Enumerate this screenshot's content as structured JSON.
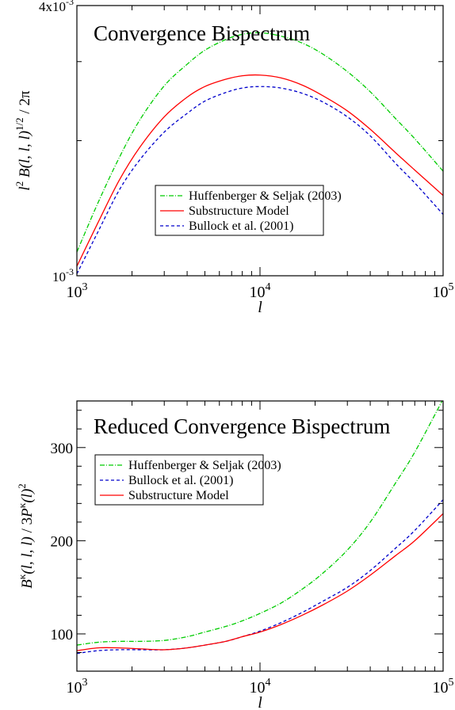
{
  "chart_data": [
    {
      "type": "line",
      "title": "Convergence Bispectrum",
      "xlabel": "l",
      "ylabel": "l² B(l, l, l)^1/2 / 2π",
      "xscale": "log",
      "yscale": "log",
      "xlim": [
        1000,
        100000
      ],
      "ylim": [
        0.001,
        0.004
      ],
      "xticks": [
        {
          "value": 1000,
          "base": "10",
          "exp": "3"
        },
        {
          "value": 10000,
          "base": "10",
          "exp": "4"
        },
        {
          "value": 100000,
          "base": "10",
          "exp": "5"
        }
      ],
      "yticks": [
        {
          "value": 0.001,
          "base": "10",
          "exp": "-3"
        },
        {
          "value": 0.004,
          "base": "4x10",
          "exp": "-3"
        }
      ],
      "legend_position": "center-left",
      "series": [
        {
          "name": "Huffenberger & Seljak (2003)",
          "color": "#00cc00",
          "dash": "6,2,1,2",
          "x": [
            1000,
            1300,
            1700,
            2200,
            3000,
            4000,
            5000,
            6500,
            8000,
            10000,
            13000,
            17000,
            22000,
            30000,
            40000,
            55000,
            70000,
            100000
          ],
          "y": [
            0.00113,
            0.00145,
            0.00183,
            0.00222,
            0.00265,
            0.00296,
            0.00318,
            0.00336,
            0.00345,
            0.00348,
            0.00342,
            0.0033,
            0.00312,
            0.00285,
            0.00257,
            0.00224,
            0.00202,
            0.00171
          ]
        },
        {
          "name": "Substructure Model",
          "color": "#ff0000",
          "dash": "",
          "x": [
            1000,
            1300,
            1700,
            2200,
            3000,
            4000,
            5000,
            6500,
            8000,
            10000,
            13000,
            17000,
            22000,
            30000,
            40000,
            55000,
            70000,
            100000
          ],
          "y": [
            0.00105,
            0.00131,
            0.00163,
            0.00193,
            0.00226,
            0.0025,
            0.00264,
            0.00274,
            0.00279,
            0.0028,
            0.00276,
            0.00266,
            0.00252,
            0.00233,
            0.00212,
            0.00188,
            0.00172,
            0.00151
          ]
        },
        {
          "name": "Bullock et al. (2001)",
          "color": "#0000cc",
          "dash": "4,3",
          "x": [
            1000,
            1300,
            1700,
            2200,
            3000,
            4000,
            5000,
            6500,
            8000,
            10000,
            13000,
            17000,
            22000,
            30000,
            40000,
            55000,
            70000,
            100000
          ],
          "y": [
            0.00101,
            0.00125,
            0.00155,
            0.00181,
            0.00209,
            0.0023,
            0.00245,
            0.00256,
            0.00262,
            0.00264,
            0.00262,
            0.00255,
            0.00244,
            0.00226,
            0.00205,
            0.00178,
            0.00161,
            0.00137
          ]
        }
      ]
    },
    {
      "type": "line",
      "title": "Reduced Convergence Bispectrum",
      "xlabel": "l",
      "ylabel": "B^κ(l, l, l) / 3P^κ(l)²",
      "xscale": "log",
      "yscale": "linear",
      "xlim": [
        1000,
        100000
      ],
      "ylim": [
        60,
        350
      ],
      "xticks": [
        {
          "value": 1000,
          "base": "10",
          "exp": "3"
        },
        {
          "value": 10000,
          "base": "10",
          "exp": "4"
        },
        {
          "value": 100000,
          "base": "10",
          "exp": "5"
        }
      ],
      "yticks": [
        {
          "value": 100,
          "label": "100"
        },
        {
          "value": 200,
          "label": "200"
        },
        {
          "value": 300,
          "label": "300"
        }
      ],
      "legend_position": "top-left",
      "series": [
        {
          "name": "Huffenberger & Seljak (2003)",
          "color": "#00cc00",
          "dash": "6,2,1,2",
          "x": [
            1000,
            1300,
            1700,
            2200,
            3000,
            4000,
            5000,
            6500,
            8000,
            10000,
            13000,
            17000,
            22000,
            30000,
            40000,
            55000,
            70000,
            100000
          ],
          "y": [
            88,
            91,
            92,
            92,
            93,
            97,
            102,
            108,
            114,
            122,
            133,
            148,
            165,
            190,
            220,
            262,
            295,
            352
          ]
        },
        {
          "name": "Bullock et al. (2001)",
          "color": "#0000cc",
          "dash": "4,3",
          "x": [
            1000,
            1300,
            1700,
            2200,
            3000,
            4000,
            5000,
            6500,
            8000,
            10000,
            13000,
            17000,
            22000,
            30000,
            40000,
            55000,
            70000,
            100000
          ],
          "y": [
            79,
            82,
            83,
            83,
            83,
            85,
            88,
            92,
            97,
            103,
            112,
            123,
            135,
            150,
            168,
            192,
            211,
            244
          ]
        },
        {
          "name": "Substructure Model",
          "color": "#ff0000",
          "dash": "",
          "x": [
            1000,
            1300,
            1700,
            2200,
            3000,
            4000,
            5000,
            6500,
            8000,
            10000,
            13000,
            17000,
            22000,
            30000,
            40000,
            55000,
            70000,
            100000
          ],
          "y": [
            82,
            85,
            85,
            84,
            83,
            85,
            88,
            92,
            97,
            102,
            110,
            120,
            131,
            146,
            163,
            184,
            200,
            229
          ]
        }
      ]
    }
  ]
}
